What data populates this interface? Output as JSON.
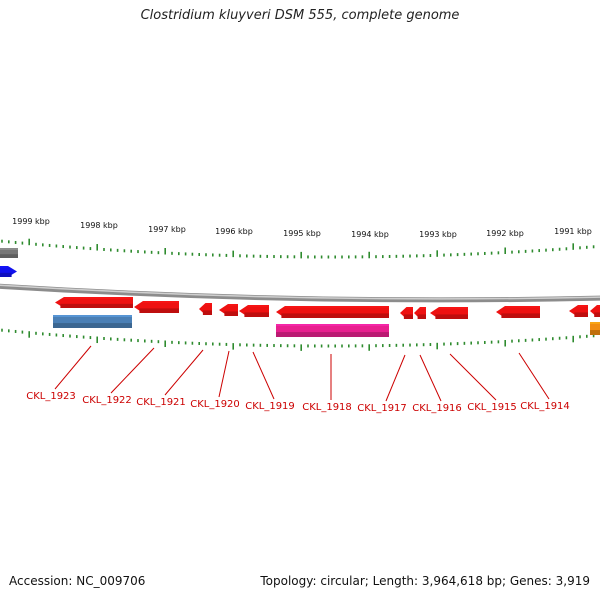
{
  "title": "Clostridium kluyveri DSM 555, complete genome",
  "footer": {
    "accession": "Accession: NC_009706",
    "summary": "Topology: circular; Length: 3,964,618 bp; Genes: 3,919"
  },
  "colors": {
    "backbone": "#8c8c8c",
    "tick": "#2e8b2e",
    "gene_red": "#ee1111",
    "gene_blue": "#4a7fb5",
    "gene_pink": "#e8208f",
    "gene_gray": "#777777",
    "gene_dark_blue": "#1111ee",
    "gene_orange": "#f08c10",
    "label": "#cc0000"
  },
  "scale_labels": [
    "1999 kbp",
    "1998 kbp",
    "1997 kbp",
    "1996 kbp",
    "1995 kbp",
    "1994 kbp",
    "1993 kbp",
    "1992 kbp",
    "1991 kbp"
  ],
  "locus_labels": [
    "CKL_1923",
    "CKL_1922",
    "CKL_1921",
    "CKL_1920",
    "CKL_1919",
    "CKL_1918",
    "CKL_1917",
    "CKL_1916",
    "CKL_1915",
    "CKL_1914"
  ]
}
